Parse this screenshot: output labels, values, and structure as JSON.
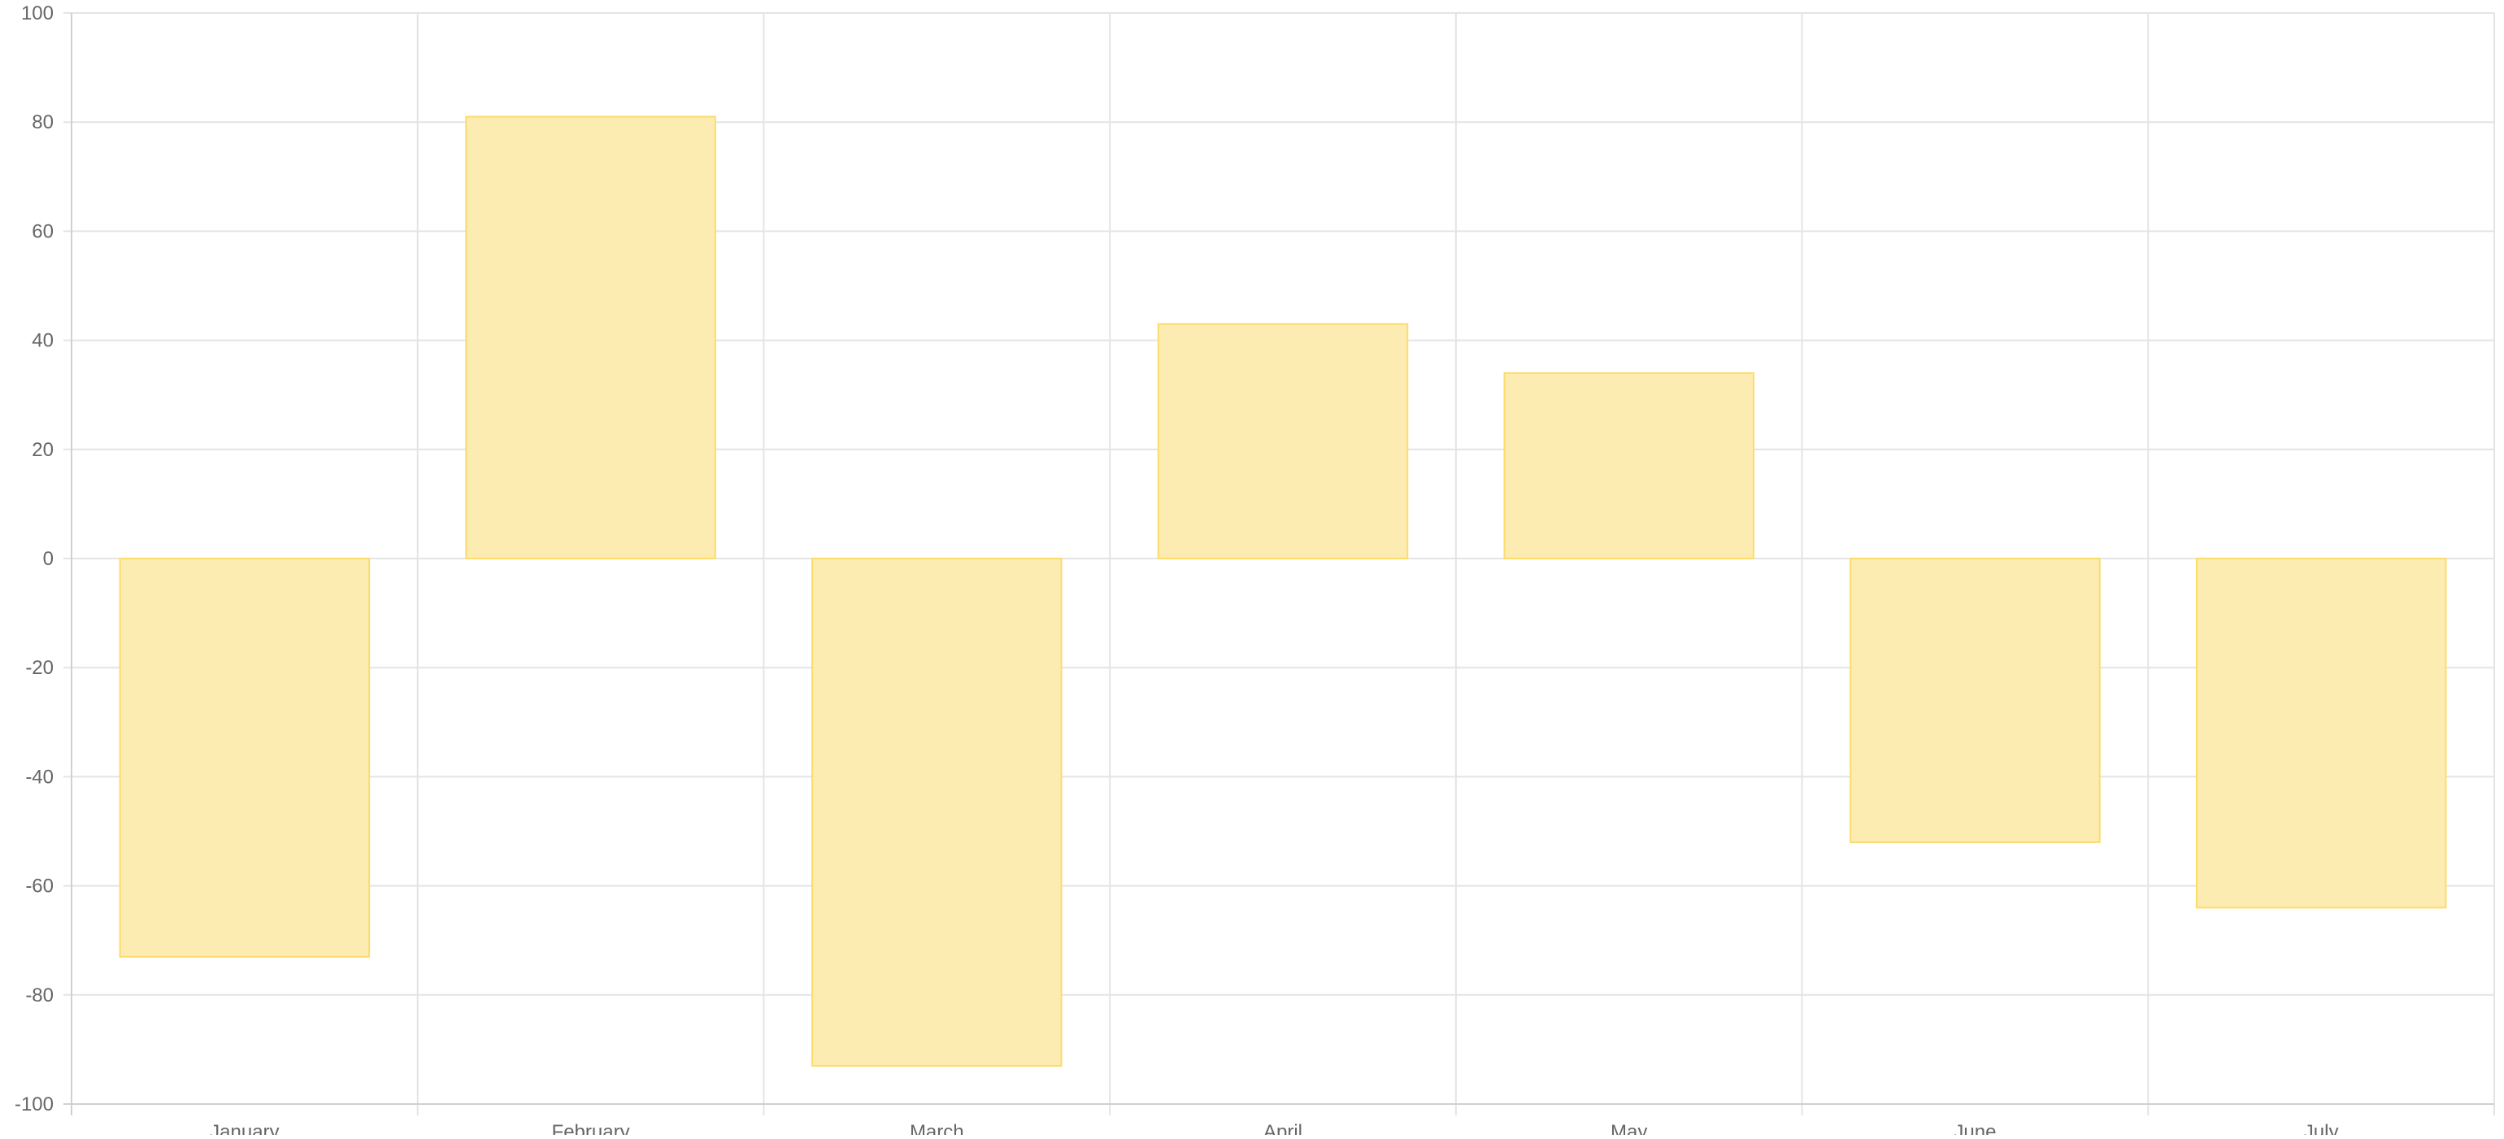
{
  "chart_data": {
    "type": "bar",
    "categories": [
      "January",
      "February",
      "March",
      "April",
      "May",
      "June",
      "July"
    ],
    "series": [
      {
        "values": [
          -73,
          81,
          -93,
          43,
          34,
          -52,
          -64
        ],
        "fill_color": "#fdecb2",
        "border_color": "#fcdc6a"
      }
    ],
    "ylim": [
      -100,
      100
    ],
    "yticks": [
      -100,
      -80,
      -60,
      -40,
      -20,
      0,
      20,
      40,
      60,
      80,
      100
    ],
    "grid": true,
    "legend": "none",
    "title": "",
    "xlabel": "",
    "ylabel": "",
    "colors": {
      "grid": "#e4e4e4",
      "axis": "#d0d0d0",
      "tick_text": "#666666"
    }
  }
}
